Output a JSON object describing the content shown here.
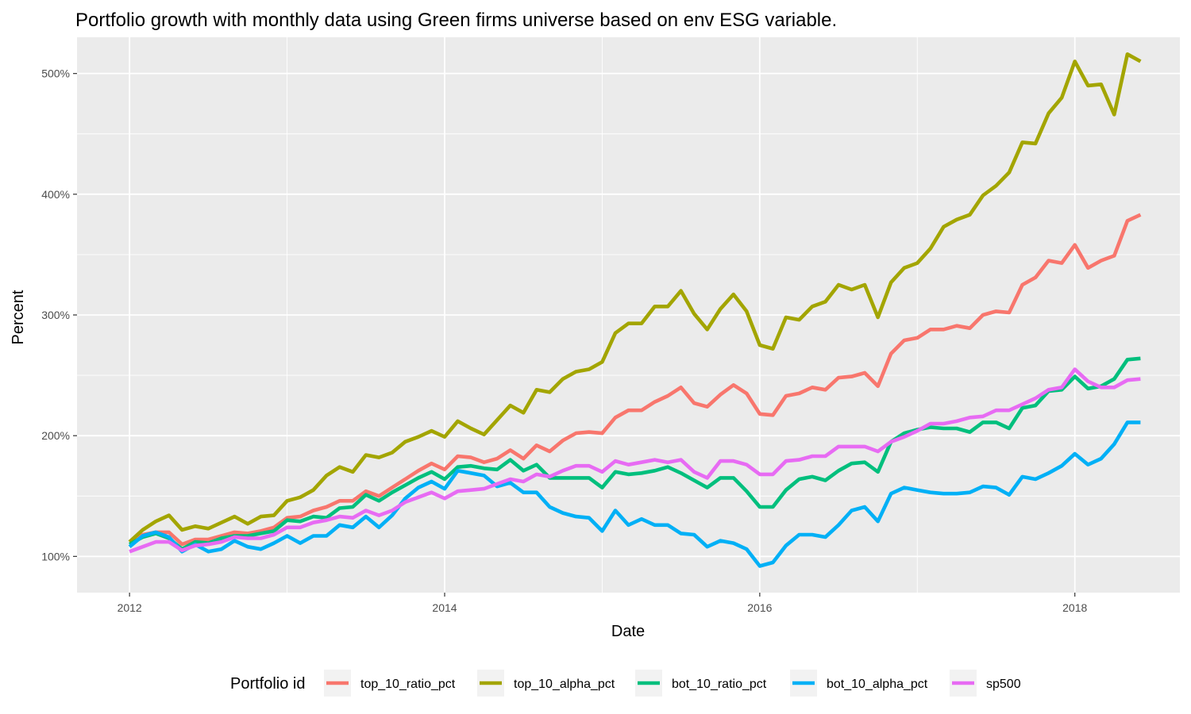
{
  "chart_data": {
    "type": "line",
    "title": "Portfolio growth with monthly data using Green firms universe based on env ESG variable.",
    "xlabel": "Date",
    "ylabel": "Percent",
    "legend_title": "Portfolio id",
    "legend_position": "bottom",
    "grid": true,
    "x_ticks": [
      "2012",
      "2014",
      "2016",
      "2018"
    ],
    "y_ticks": [
      "100%",
      "200%",
      "300%",
      "400%",
      "500%"
    ],
    "y_tick_values": [
      100,
      200,
      300,
      400,
      500
    ],
    "xlim": [
      "2011-09",
      "2018-09"
    ],
    "ylim": [
      70,
      530
    ],
    "x": [
      "2012-01",
      "2012-02",
      "2012-03",
      "2012-04",
      "2012-05",
      "2012-06",
      "2012-07",
      "2012-08",
      "2012-09",
      "2012-10",
      "2012-11",
      "2012-12",
      "2013-01",
      "2013-02",
      "2013-03",
      "2013-04",
      "2013-05",
      "2013-06",
      "2013-07",
      "2013-08",
      "2013-09",
      "2013-10",
      "2013-11",
      "2013-12",
      "2014-01",
      "2014-02",
      "2014-03",
      "2014-04",
      "2014-05",
      "2014-06",
      "2014-07",
      "2014-08",
      "2014-09",
      "2014-10",
      "2014-11",
      "2014-12",
      "2015-01",
      "2015-02",
      "2015-03",
      "2015-04",
      "2015-05",
      "2015-06",
      "2015-07",
      "2015-08",
      "2015-09",
      "2015-10",
      "2015-11",
      "2015-12",
      "2016-01",
      "2016-02",
      "2016-03",
      "2016-04",
      "2016-05",
      "2016-06",
      "2016-07",
      "2016-08",
      "2016-09",
      "2016-10",
      "2016-11",
      "2016-12",
      "2017-01",
      "2017-02",
      "2017-03",
      "2017-04",
      "2017-05",
      "2017-06",
      "2017-07",
      "2017-08",
      "2017-09",
      "2017-10",
      "2017-11",
      "2017-12",
      "2018-01",
      "2018-02",
      "2018-03",
      "2018-04",
      "2018-05",
      "2018-06"
    ],
    "series": [
      {
        "name": "top_10_ratio_pct",
        "color": "#F8766D",
        "values": [
          112,
          118,
          120,
          120,
          110,
          114,
          114,
          117,
          120,
          119,
          121,
          124,
          132,
          133,
          138,
          141,
          146,
          146,
          154,
          150,
          157,
          164,
          171,
          177,
          172,
          183,
          182,
          178,
          181,
          188,
          181,
          192,
          187,
          196,
          202,
          203,
          202,
          215,
          221,
          221,
          228,
          233,
          240,
          227,
          224,
          234,
          242,
          235,
          218,
          217,
          233,
          235,
          240,
          238,
          248,
          249,
          252,
          241,
          268,
          279,
          281,
          288,
          288,
          291,
          289,
          300,
          303,
          302,
          325,
          331,
          345,
          343,
          358,
          339,
          345,
          349,
          378,
          383
        ]
      },
      {
        "name": "top_10_alpha_pct",
        "color": "#A3A500",
        "values": [
          112,
          122,
          129,
          134,
          122,
          125,
          123,
          128,
          133,
          127,
          133,
          134,
          146,
          149,
          155,
          167,
          174,
          170,
          184,
          182,
          186,
          195,
          199,
          204,
          199,
          212,
          206,
          201,
          213,
          225,
          219,
          238,
          236,
          247,
          253,
          255,
          261,
          285,
          293,
          293,
          307,
          307,
          320,
          301,
          288,
          305,
          317,
          303,
          275,
          272,
          298,
          296,
          307,
          311,
          325,
          321,
          325,
          298,
          327,
          339,
          343,
          355,
          373,
          379,
          383,
          399,
          407,
          418,
          443,
          442,
          467,
          480,
          510,
          490,
          491,
          466,
          516,
          510
        ]
      },
      {
        "name": "bot_10_ratio_pct",
        "color": "#00BF7D",
        "values": [
          110,
          116,
          119,
          115,
          106,
          112,
          111,
          115,
          117,
          117,
          119,
          121,
          130,
          129,
          133,
          132,
          140,
          141,
          151,
          146,
          153,
          159,
          165,
          170,
          164,
          174,
          175,
          173,
          172,
          180,
          171,
          176,
          165,
          165,
          165,
          165,
          157,
          170,
          168,
          169,
          171,
          174,
          169,
          163,
          157,
          165,
          165,
          154,
          141,
          141,
          155,
          164,
          166,
          163,
          171,
          177,
          178,
          170,
          195,
          202,
          205,
          207,
          206,
          206,
          203,
          211,
          211,
          206,
          223,
          225,
          237,
          238,
          249,
          239,
          241,
          247,
          263,
          264
        ]
      },
      {
        "name": "bot_10_alpha_pct",
        "color": "#00B0F6",
        "values": [
          108,
          117,
          120,
          116,
          104,
          110,
          104,
          106,
          113,
          108,
          106,
          111,
          117,
          111,
          117,
          117,
          126,
          124,
          133,
          124,
          134,
          148,
          157,
          162,
          156,
          171,
          169,
          167,
          158,
          161,
          153,
          153,
          141,
          136,
          133,
          132,
          121,
          138,
          126,
          131,
          126,
          126,
          119,
          118,
          108,
          113,
          111,
          106,
          92,
          95,
          109,
          118,
          118,
          116,
          126,
          138,
          141,
          129,
          152,
          157,
          155,
          153,
          152,
          152,
          153,
          158,
          157,
          151,
          166,
          164,
          169,
          175,
          185,
          176,
          181,
          193,
          211,
          211
        ]
      },
      {
        "name": "sp500",
        "color": "#E76BF3",
        "values": [
          104,
          108,
          112,
          112,
          105,
          109,
          110,
          112,
          116,
          115,
          115,
          118,
          124,
          124,
          128,
          130,
          133,
          132,
          138,
          134,
          138,
          145,
          149,
          153,
          148,
          154,
          155,
          156,
          160,
          164,
          162,
          168,
          166,
          171,
          175,
          175,
          170,
          179,
          176,
          178,
          180,
          178,
          180,
          170,
          165,
          179,
          179,
          176,
          168,
          168,
          179,
          180,
          183,
          183,
          191,
          191,
          191,
          187,
          195,
          199,
          204,
          210,
          210,
          212,
          215,
          216,
          221,
          221,
          226,
          231,
          238,
          240,
          255,
          245,
          240,
          240,
          246,
          247
        ]
      }
    ]
  }
}
